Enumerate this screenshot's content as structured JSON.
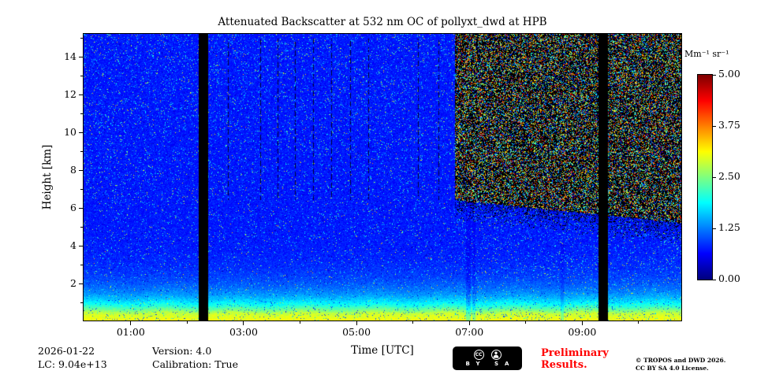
{
  "title": "Attenuated Backscatter at 532 nm OC of pollyxt_dwd at HPB",
  "footer": {
    "date": "2026-01-22",
    "lc": "LC: 9.04e+13",
    "version": "Version: 4.0",
    "calibration": "Calibration: True"
  },
  "preliminary": {
    "line1": "Preliminary",
    "line2": "Results.",
    "color": "#ff0000"
  },
  "license": {
    "line1": "© TROPOS and DWD 2026.",
    "line2": "CC BY SA 4.0 License.",
    "badge": {
      "cc": "CC",
      "by": "BY",
      "sa": "SA",
      "by_sa": "BY SA"
    }
  },
  "chart_data": {
    "type": "heatmap",
    "title": "Attenuated Backscatter at 532 nm OC of pollyxt_dwd at HPB",
    "xlabel": "Time [UTC]",
    "ylabel": "Height [km]",
    "colorbar_title": "Mm⁻¹ sr⁻¹",
    "colorbar_ticks": [
      "5.00",
      "3.75",
      "2.50",
      "1.25",
      "0.00"
    ],
    "value_range": [
      0,
      5
    ],
    "colormap": "jet",
    "x_range_hours": [
      0.15,
      10.77
    ],
    "x_major_ticks": [
      {
        "t": 1,
        "label": "01:00"
      },
      {
        "t": 3,
        "label": "03:00"
      },
      {
        "t": 5,
        "label": "05:00"
      },
      {
        "t": 7,
        "label": "07:00"
      },
      {
        "t": 9,
        "label": "09:00"
      }
    ],
    "x_minor_ticks": [
      2,
      4,
      6,
      8,
      10
    ],
    "y_range_km": [
      0,
      15.25
    ],
    "y_major_ticks": [
      2,
      4,
      6,
      8,
      10,
      12,
      14
    ],
    "y_minor_ticks": [
      1,
      3,
      5,
      7,
      9,
      11,
      13,
      15
    ],
    "data_gaps_hours": [
      [
        2.2,
        2.37
      ],
      [
        9.3,
        9.47
      ]
    ],
    "daytime_noise": {
      "start_hour": 6.75,
      "base_height_km": 6.4,
      "slope_km_per_hour": -0.3,
      "min_height_km": 5.2,
      "speckle_density": 0.42,
      "speckle_max_value": 4.6,
      "mix_band_km": 1.2,
      "mix_black_prob": 0.3
    },
    "calibration_streaks_hours": [
      2.72,
      3.29,
      3.6,
      3.91,
      4.23,
      4.55,
      4.89,
      5.21,
      6.09,
      6.45
    ],
    "streak_height_range_km": [
      6.4,
      15.0
    ],
    "dim_columns": [
      {
        "t0": 6.95,
        "t1": 7.03,
        "h_max": 6.5,
        "factor": 0.82
      },
      {
        "t0": 7.06,
        "t1": 7.12,
        "h_max": 6.5,
        "factor": 0.86
      },
      {
        "t0": 8.62,
        "t1": 8.68,
        "h_max": 4.2,
        "factor": 0.86
      }
    ],
    "profile": {
      "band_top_km": 0.38,
      "band_value": 2.85,
      "bg_value": 0.72,
      "decay_amp": 2.13,
      "decay_scale_km": 0.85,
      "noise_amp": 0.34,
      "speckle_base_prob": 0.04,
      "speckle_height_prob": 0.06,
      "speckle_min_value": 0.95,
      "speckle_amp": 2.9,
      "dark_speckle_prob": 0.012,
      "day_extra_speckle_prob": 0.03
    }
  }
}
